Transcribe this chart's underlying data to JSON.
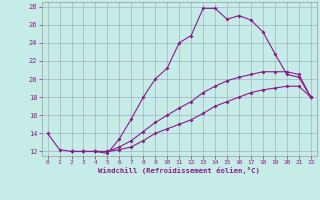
{
  "xlabel": "Windchill (Refroidissement éolien,°C)",
  "bg_color": "#c5ece6",
  "line_color": "#8b1a8b",
  "grid_color": "#a0a0c0",
  "xlim": [
    -0.5,
    22.5
  ],
  "ylim": [
    11.5,
    28.5
  ],
  "xticks": [
    0,
    1,
    2,
    3,
    4,
    5,
    6,
    7,
    8,
    9,
    10,
    11,
    12,
    13,
    14,
    15,
    16,
    17,
    18,
    19,
    20,
    21,
    22
  ],
  "yticks": [
    12,
    14,
    16,
    18,
    20,
    22,
    24,
    26,
    28
  ],
  "curve1_x": [
    0,
    1,
    2,
    3,
    4,
    5,
    6,
    7,
    8,
    9,
    10,
    11,
    12,
    13,
    14,
    15,
    16,
    17,
    18,
    19,
    20,
    21,
    22
  ],
  "curve1_y": [
    14,
    12.2,
    12,
    12,
    12,
    11.8,
    13.4,
    15.6,
    18.0,
    20.0,
    21.2,
    24.0,
    24.8,
    27.8,
    27.8,
    26.6,
    27.0,
    26.5,
    25.2,
    22.8,
    20.5,
    20.2,
    18.0
  ],
  "curve2_x": [
    2,
    3,
    4,
    5,
    6,
    7,
    8,
    9,
    10,
    11,
    12,
    13,
    14,
    15,
    16,
    17,
    18,
    19,
    20,
    21,
    22
  ],
  "curve2_y": [
    12,
    12,
    12,
    12,
    12.5,
    13.2,
    14.2,
    15.2,
    16.0,
    16.8,
    17.5,
    18.5,
    19.2,
    19.8,
    20.2,
    20.5,
    20.8,
    20.8,
    20.8,
    20.5,
    18.0
  ],
  "curve3_x": [
    2,
    3,
    4,
    5,
    6,
    7,
    8,
    9,
    10,
    11,
    12,
    13,
    14,
    15,
    16,
    17,
    18,
    19,
    20,
    21,
    22
  ],
  "curve3_y": [
    12,
    12,
    12,
    12,
    12.2,
    12.5,
    13.2,
    14.0,
    14.5,
    15.0,
    15.5,
    16.2,
    17.0,
    17.5,
    18.0,
    18.5,
    18.8,
    19.0,
    19.2,
    19.2,
    18.0
  ]
}
